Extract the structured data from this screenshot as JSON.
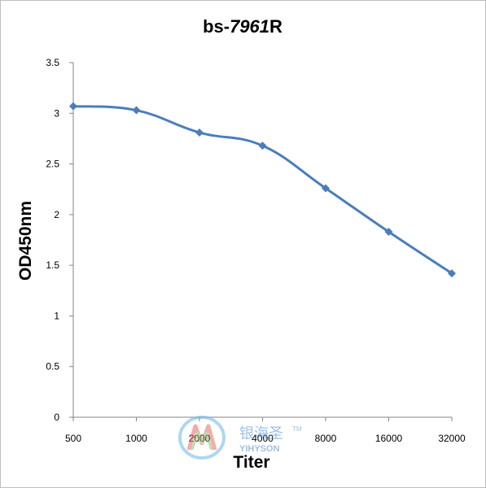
{
  "chart_data": {
    "type": "line",
    "title": {
      "prefix": "bs-",
      "number": "7961",
      "suffix": "R"
    },
    "xlabel": "Titer",
    "ylabel": "OD450nm",
    "categories": [
      "500",
      "1000",
      "2000",
      "4000",
      "8000",
      "16000",
      "32000"
    ],
    "series": [
      {
        "values": [
          3.07,
          3.03,
          2.81,
          2.68,
          2.26,
          1.83,
          1.42
        ]
      }
    ],
    "yticks": [
      "0",
      "0.5",
      "1",
      "1.5",
      "2",
      "2.5",
      "3",
      "3.5"
    ],
    "ylim": [
      0,
      3.5
    ],
    "grid": false,
    "legend": "none",
    "line_color": "#4a7ebb"
  },
  "watermark": {
    "brand_cn": "银海圣",
    "brand_en": "YIHYSON",
    "tm": "TM"
  }
}
